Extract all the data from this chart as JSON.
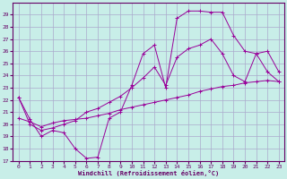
{
  "xlabel": "Windchill (Refroidissement éolien,°C)",
  "bg_color": "#c8eee8",
  "grid_color": "#aaaacc",
  "line_color": "#990099",
  "xlim": [
    -0.5,
    23.5
  ],
  "ylim": [
    17,
    30
  ],
  "xticks": [
    0,
    1,
    2,
    3,
    4,
    5,
    6,
    7,
    8,
    9,
    10,
    11,
    12,
    13,
    14,
    15,
    16,
    17,
    18,
    19,
    20,
    21,
    22,
    23
  ],
  "yticks": [
    17,
    18,
    19,
    20,
    21,
    22,
    23,
    24,
    25,
    26,
    27,
    28,
    29
  ],
  "line1_x": [
    0,
    1,
    2,
    3,
    4,
    5,
    6,
    7,
    8,
    9,
    10,
    11,
    12,
    13,
    14,
    15,
    16,
    17,
    18,
    19,
    20,
    21,
    22,
    23
  ],
  "line1_y": [
    22.2,
    20.4,
    19.0,
    19.5,
    19.3,
    18.0,
    17.2,
    17.3,
    20.5,
    21.0,
    23.2,
    25.8,
    26.5,
    23.0,
    28.7,
    29.3,
    29.3,
    29.2,
    29.2,
    27.3,
    26.0,
    25.8,
    24.3,
    23.5
  ],
  "line2_x": [
    0,
    1,
    2,
    3,
    4,
    5,
    6,
    7,
    8,
    9,
    10,
    11,
    12,
    13,
    14,
    15,
    16,
    17,
    18,
    19,
    20,
    21,
    22,
    23
  ],
  "line2_y": [
    20.5,
    20.2,
    19.8,
    20.1,
    20.3,
    20.4,
    20.5,
    20.7,
    20.9,
    21.2,
    21.4,
    21.6,
    21.8,
    22.0,
    22.2,
    22.4,
    22.7,
    22.9,
    23.1,
    23.2,
    23.4,
    23.5,
    23.6,
    23.5
  ],
  "line3_x": [
    0,
    1,
    2,
    3,
    4,
    5,
    6,
    7,
    8,
    9,
    10,
    11,
    12,
    13,
    14,
    15,
    16,
    17,
    18,
    19,
    20,
    21,
    22,
    23
  ],
  "line3_y": [
    22.2,
    20.0,
    19.5,
    19.7,
    20.0,
    20.3,
    21.0,
    21.3,
    21.8,
    22.3,
    23.0,
    23.8,
    24.7,
    23.2,
    25.5,
    26.2,
    26.5,
    27.0,
    25.8,
    24.0,
    23.5,
    25.8,
    26.0,
    24.3
  ]
}
